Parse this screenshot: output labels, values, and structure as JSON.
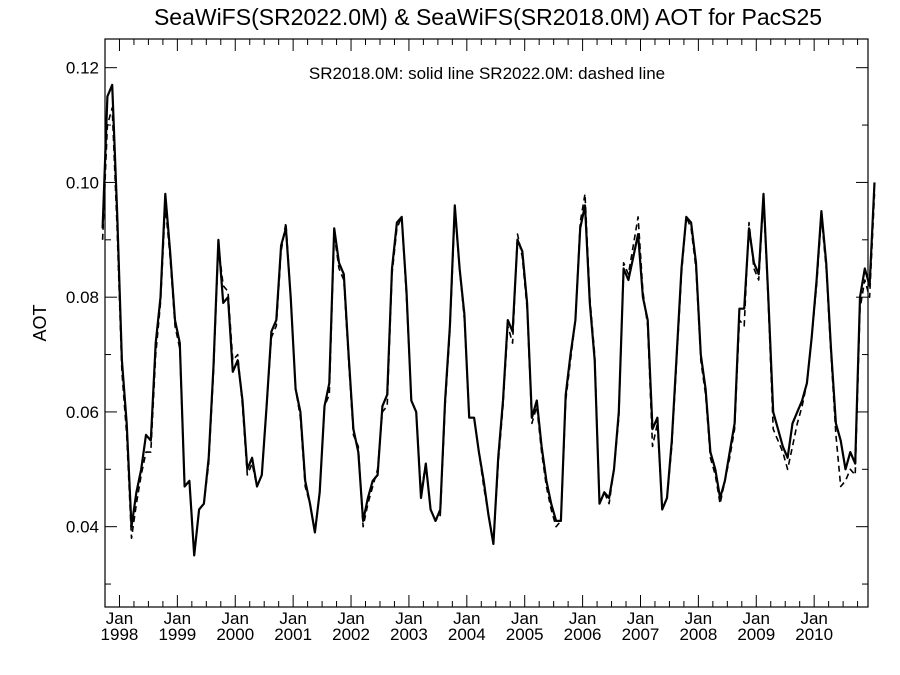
{
  "chart_data": {
    "type": "line",
    "title": "SeaWiFS(SR2022.0M) & SeaWiFS(SR2018.0M)  AOT for PacS25",
    "annotation": "SR2018.0M: solid line   SR2022.0M: dashed line",
    "xlabel": "",
    "ylabel": "AOT",
    "xlim": [
      1997.75,
      2010.93
    ],
    "ylim": [
      0.026,
      0.125
    ],
    "y_ticks": [
      "0.04",
      "0.06",
      "0.08",
      "0.10",
      "0.12"
    ],
    "x_ticks": [
      {
        "month": "Jan",
        "year": "1998"
      },
      {
        "month": "Jan",
        "year": "1999"
      },
      {
        "month": "Jan",
        "year": "2000"
      },
      {
        "month": "Jan",
        "year": "2001"
      },
      {
        "month": "Jan",
        "year": "2002"
      },
      {
        "month": "Jan",
        "year": "2003"
      },
      {
        "month": "Jan",
        "year": "2004"
      },
      {
        "month": "Jan",
        "year": "2005"
      },
      {
        "month": "Jan",
        "year": "2006"
      },
      {
        "month": "Jan",
        "year": "2007"
      },
      {
        "month": "Jan",
        "year": "2008"
      },
      {
        "month": "Jan",
        "year": "2009"
      },
      {
        "month": "Jan",
        "year": "2010"
      }
    ],
    "grid": false,
    "start": "1997-09",
    "series": [
      {
        "label": "SR2018.0M",
        "style": "solid",
        "color": "#000000",
        "values": [
          0.092,
          0.115,
          0.117,
          0.095,
          0.069,
          0.058,
          0.04,
          0.046,
          0.05,
          0.056,
          0.055,
          0.072,
          0.08,
          0.098,
          0.088,
          0.076,
          0.072,
          0.047,
          0.048,
          0.035,
          0.043,
          0.044,
          0.052,
          0.068,
          0.09,
          0.079,
          0.08,
          0.067,
          0.069,
          0.062,
          0.05,
          0.052,
          0.047,
          0.049,
          0.061,
          0.074,
          0.076,
          0.089,
          0.092,
          0.08,
          0.064,
          0.06,
          0.048,
          0.044,
          0.039,
          0.046,
          0.061,
          0.065,
          0.092,
          0.086,
          0.084,
          0.07,
          0.057,
          0.053,
          0.041,
          0.045,
          0.048,
          0.049,
          0.061,
          0.063,
          0.085,
          0.093,
          0.094,
          0.081,
          0.062,
          0.06,
          0.045,
          0.051,
          0.043,
          0.041,
          0.043,
          0.062,
          0.075,
          0.096,
          0.085,
          0.077,
          0.059,
          0.059,
          0.053,
          0.048,
          0.042,
          0.037,
          0.052,
          0.062,
          0.076,
          0.074,
          0.09,
          0.088,
          0.079,
          0.059,
          0.062,
          0.054,
          0.048,
          0.044,
          0.041,
          0.041,
          0.063,
          0.07,
          0.076,
          0.092,
          0.096,
          0.079,
          0.069,
          0.044,
          0.046,
          0.045,
          0.05,
          0.06,
          0.085,
          0.083,
          0.087,
          0.091,
          0.08,
          0.076,
          0.057,
          0.059,
          0.043,
          0.045,
          0.055,
          0.07,
          0.085,
          0.094,
          0.093,
          0.086,
          0.07,
          0.064,
          0.053,
          0.05,
          0.045,
          0.048,
          0.053,
          0.058,
          0.078,
          0.078,
          0.092,
          0.086,
          0.084,
          0.098,
          0.08,
          0.06,
          0.057,
          0.054,
          0.052,
          0.058,
          0.06,
          0.062,
          0.065,
          0.073,
          0.083,
          0.095,
          0.086,
          0.071,
          0.058,
          0.055,
          0.05,
          0.053,
          0.051,
          0.08,
          0.085,
          0.082,
          0.1
        ]
      },
      {
        "label": "SR2022.0M",
        "style": "dashed",
        "color": "#000000",
        "values": [
          0.09,
          0.11,
          0.113,
          0.092,
          0.067,
          0.056,
          0.038,
          0.044,
          0.049,
          0.053,
          0.053,
          0.07,
          0.079,
          0.096,
          0.087,
          0.075,
          0.071,
          0.047,
          0.048,
          0.035,
          0.043,
          0.044,
          0.051,
          0.067,
          0.089,
          0.082,
          0.081,
          0.069,
          0.07,
          0.061,
          0.049,
          0.051,
          0.047,
          0.049,
          0.061,
          0.073,
          0.075,
          0.088,
          0.093,
          0.08,
          0.064,
          0.059,
          0.047,
          0.044,
          0.039,
          0.046,
          0.061,
          0.063,
          0.091,
          0.085,
          0.083,
          0.069,
          0.056,
          0.054,
          0.04,
          0.044,
          0.047,
          0.05,
          0.06,
          0.061,
          0.084,
          0.092,
          0.094,
          0.08,
          0.062,
          0.06,
          0.046,
          0.051,
          0.043,
          0.041,
          0.042,
          0.061,
          0.074,
          0.095,
          0.085,
          0.076,
          0.059,
          0.059,
          0.053,
          0.047,
          0.042,
          0.037,
          0.051,
          0.061,
          0.075,
          0.072,
          0.091,
          0.087,
          0.078,
          0.058,
          0.061,
          0.053,
          0.047,
          0.043,
          0.04,
          0.041,
          0.062,
          0.069,
          0.076,
          0.093,
          0.098,
          0.08,
          0.07,
          0.044,
          0.046,
          0.044,
          0.05,
          0.059,
          0.086,
          0.084,
          0.089,
          0.094,
          0.081,
          0.075,
          0.054,
          0.058,
          0.043,
          0.045,
          0.054,
          0.069,
          0.084,
          0.094,
          0.092,
          0.085,
          0.069,
          0.063,
          0.052,
          0.049,
          0.044,
          0.048,
          0.052,
          0.057,
          0.076,
          0.075,
          0.093,
          0.085,
          0.083,
          0.097,
          0.079,
          0.057,
          0.055,
          0.053,
          0.05,
          0.054,
          0.058,
          0.061,
          0.065,
          0.073,
          0.082,
          0.094,
          0.085,
          0.07,
          0.056,
          0.047,
          0.048,
          0.05,
          0.049,
          0.078,
          0.083,
          0.08,
          0.098
        ]
      }
    ]
  }
}
